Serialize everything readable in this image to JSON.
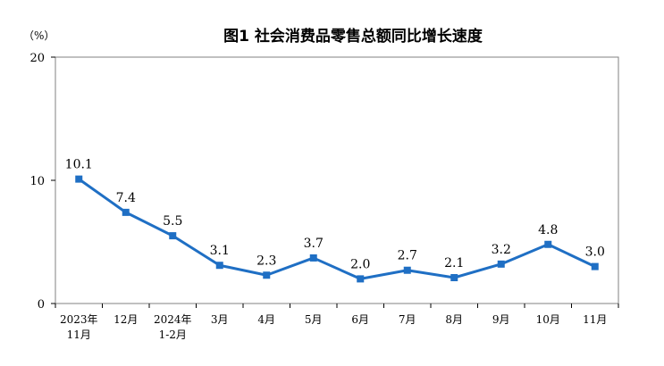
{
  "chart_data": {
    "type": "line",
    "title": "图1  社会消费品零售总额同比增长速度",
    "unit_label": "（%）",
    "categories": [
      [
        "2023年",
        "11月"
      ],
      [
        "12月"
      ],
      [
        "2024年",
        "1-2月"
      ],
      [
        "3月"
      ],
      [
        "4月"
      ],
      [
        "5月"
      ],
      [
        "6月"
      ],
      [
        "7月"
      ],
      [
        "8月"
      ],
      [
        "9月"
      ],
      [
        "10月"
      ],
      [
        "11月"
      ]
    ],
    "series": [
      {
        "values": [
          10.1,
          7.4,
          5.5,
          3.1,
          2.3,
          3.7,
          2.0,
          2.7,
          2.1,
          3.2,
          4.8,
          3.0
        ],
        "labels": [
          "10.1",
          "7.4",
          "5.5",
          "3.1",
          "2.3",
          "3.7",
          "2.0",
          "2.7",
          "2.1",
          "3.2",
          "4.8",
          "3.0"
        ],
        "color": "#1f6fc4"
      }
    ],
    "ylim": [
      0,
      20
    ],
    "yticks": [
      0,
      10,
      20
    ],
    "ytick_labels": [
      "0",
      "10",
      "20"
    ],
    "grid": false,
    "frame_color": "#808080"
  }
}
